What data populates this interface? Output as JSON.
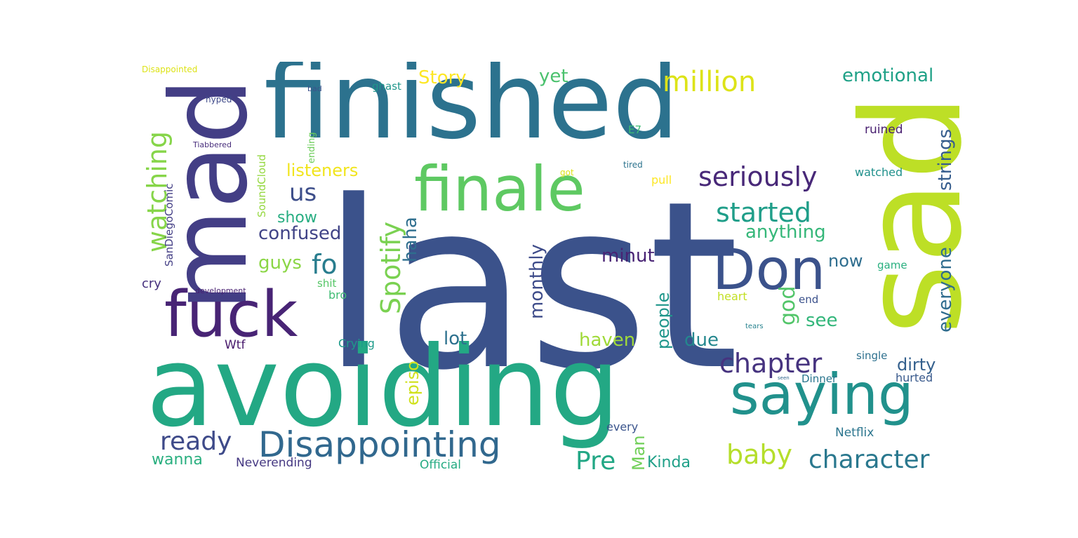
{
  "words": [
    {
      "text": "last",
      "color": "#3b528b"
    },
    {
      "text": "avoiding",
      "color": "#23a884"
    },
    {
      "text": "finished",
      "color": "#2c728e"
    },
    {
      "text": "sad",
      "color": "#bddf26"
    },
    {
      "text": "mad",
      "color": "#433e85"
    },
    {
      "text": "finale",
      "color": "#5ec962"
    },
    {
      "text": "fuck",
      "color": "#482475"
    },
    {
      "text": "saying",
      "color": "#21918c"
    },
    {
      "text": "Don",
      "color": "#3b528b"
    },
    {
      "text": "Disappointing",
      "color": "#31688e"
    },
    {
      "text": "million",
      "color": "#dde318"
    },
    {
      "text": "seriously",
      "color": "#482878"
    },
    {
      "text": "started",
      "color": "#1f9e89"
    },
    {
      "text": "chapter",
      "color": "#46337f"
    },
    {
      "text": "character",
      "color": "#2a788e"
    },
    {
      "text": "baby",
      "color": "#b5de2b"
    },
    {
      "text": "ready",
      "color": "#3e4a89"
    },
    {
      "text": "Pre",
      "color": "#22a785"
    },
    {
      "text": "watching",
      "color": "#86d549"
    },
    {
      "text": "Spotify",
      "color": "#7ad151"
    },
    {
      "text": "fo",
      "color": "#287d8e"
    },
    {
      "text": "us",
      "color": "#3d4e8a"
    },
    {
      "text": "god",
      "color": "#52c569"
    },
    {
      "text": "emotional",
      "color": "#1fa187"
    },
    {
      "text": "strings",
      "color": "#365d8d"
    },
    {
      "text": "everyone",
      "color": "#2f6c8e"
    },
    {
      "text": "listeners",
      "color": "#f1e51d"
    },
    {
      "text": "confused",
      "color": "#414487"
    },
    {
      "text": "show",
      "color": "#27ad81"
    },
    {
      "text": "anything",
      "color": "#35b779"
    },
    {
      "text": "haha",
      "color": "#2e6e8e"
    },
    {
      "text": "monthly",
      "color": "#3e4c8a"
    },
    {
      "text": "minut",
      "color": "#482374"
    },
    {
      "text": "Story",
      "color": "#fde725"
    },
    {
      "text": "yet",
      "color": "#4ac16d"
    },
    {
      "text": "guys",
      "color": "#8bd646"
    },
    {
      "text": "lot",
      "color": "#2d718e"
    },
    {
      "text": "haven",
      "color": "#a0da39"
    },
    {
      "text": "due",
      "color": "#24878e"
    },
    {
      "text": "see",
      "color": "#32b67a"
    },
    {
      "text": "now",
      "color": "#2e6d8e"
    },
    {
      "text": "people",
      "color": "#1f968b"
    },
    {
      "text": "dirty",
      "color": "#34608d"
    },
    {
      "text": "episo",
      "color": "#d0e11c"
    },
    {
      "text": "Man",
      "color": "#70cf57"
    },
    {
      "text": "Kinda",
      "color": "#1fa088"
    },
    {
      "text": "wanna",
      "color": "#29af7f"
    },
    {
      "text": "Neverending",
      "color": "#453882"
    },
    {
      "text": "Official",
      "color": "#25ab82"
    },
    {
      "text": "Netflix",
      "color": "#2b758e"
    },
    {
      "text": "every",
      "color": "#3a548c"
    },
    {
      "text": "hurted",
      "color": "#38598c"
    },
    {
      "text": "Dinner",
      "color": "#2a768e"
    },
    {
      "text": "single",
      "color": "#2d708e"
    },
    {
      "text": "Crying",
      "color": "#1e9b8a"
    },
    {
      "text": "Wtf",
      "color": "#481a6c"
    },
    {
      "text": "cry",
      "color": "#46307e"
    },
    {
      "text": "bro",
      "color": "#3fbc73"
    },
    {
      "text": "shit",
      "color": "#56c667"
    },
    {
      "text": "heart",
      "color": "#c2df23"
    },
    {
      "text": "end",
      "color": "#3b518b"
    },
    {
      "text": "game",
      "color": "#29af7f"
    },
    {
      "text": "ruined",
      "color": "#481f70"
    },
    {
      "text": "watched",
      "color": "#21918c"
    },
    {
      "text": "tired",
      "color": "#2c738e"
    },
    {
      "text": "E7",
      "color": "#3dbc74"
    },
    {
      "text": "got",
      "color": "#dde318"
    },
    {
      "text": "pull",
      "color": "#fde725"
    },
    {
      "text": "ghast",
      "color": "#1f968b"
    },
    {
      "text": "bad",
      "color": "#3b528b"
    },
    {
      "text": "hyped",
      "color": "#3e4989"
    },
    {
      "text": "ending",
      "color": "#6ccd5a"
    },
    {
      "text": "SoundCloud",
      "color": "#95d840"
    },
    {
      "text": "SanDiegoComic",
      "color": "#433e85"
    },
    {
      "text": "Disappointed",
      "color": "#dde318"
    },
    {
      "text": "Tiabbered",
      "color": "#472d7b"
    },
    {
      "text": "development",
      "color": "#482071"
    },
    {
      "text": "tears",
      "color": "#26828e"
    },
    {
      "text": "seen",
      "color": "#31688e"
    }
  ]
}
